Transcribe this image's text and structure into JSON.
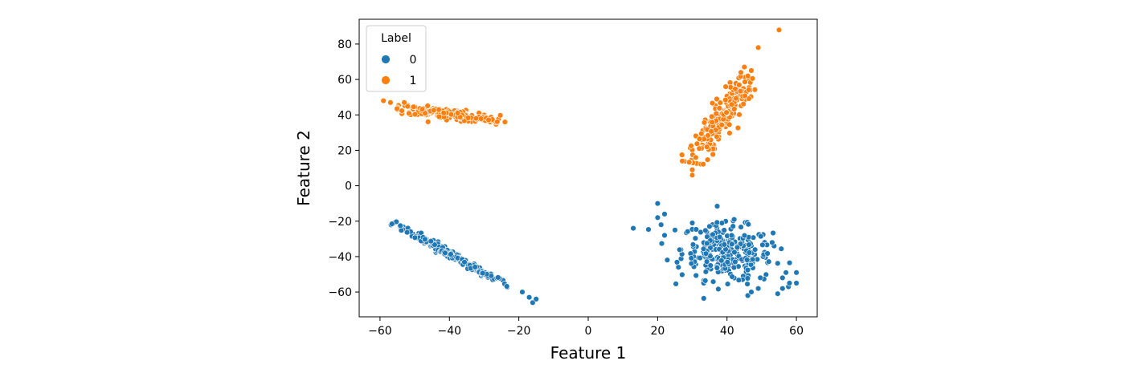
{
  "chart_data": {
    "type": "scatter",
    "title": "",
    "xlabel": "Feature 1",
    "ylabel": "Feature 2",
    "xlim": [
      -66,
      66
    ],
    "ylim": [
      -74,
      94
    ],
    "xticks": [
      -60,
      -40,
      -20,
      0,
      20,
      40,
      60
    ],
    "yticks": [
      -60,
      -40,
      -20,
      0,
      20,
      40,
      60,
      80
    ],
    "grid": false,
    "legend": {
      "title": "Label",
      "placement": "top-left"
    },
    "series": [
      {
        "name": "0",
        "color": "#1f77b4",
        "clusters": [
          {
            "shape": "line",
            "from": [
              -56,
              -21
            ],
            "to": [
              -23,
              -57
            ],
            "n": 170,
            "spread": 0.9
          },
          {
            "shape": "blob",
            "center": [
              40,
              -38
            ],
            "sd": [
              6.5,
              8
            ],
            "rho": -0.15,
            "n": 290
          }
        ],
        "points": [
          [
            -19,
            -60
          ],
          [
            -17,
            -63
          ],
          [
            -16,
            -66
          ],
          [
            -15,
            -64
          ],
          [
            13,
            -24
          ],
          [
            20,
            -10
          ],
          [
            20,
            -18
          ],
          [
            21,
            -22
          ],
          [
            22,
            -16
          ],
          [
            22,
            -28
          ],
          [
            25,
            -25
          ],
          [
            26,
            -46
          ],
          [
            30,
            -21
          ],
          [
            53,
            -32
          ],
          [
            56,
            -52
          ],
          [
            56,
            -58
          ],
          [
            57,
            -49
          ],
          [
            58,
            -55
          ],
          [
            60,
            -49
          ],
          [
            60,
            -55
          ],
          [
            46,
            -62
          ],
          [
            47,
            -60
          ],
          [
            49,
            -58
          ]
        ]
      },
      {
        "name": "1",
        "color": "#ff7f0e",
        "clusters": [
          {
            "shape": "line",
            "from": [
              -55,
              44
            ],
            "to": [
              -26,
              37
            ],
            "n": 190,
            "spread": 1.4
          },
          {
            "shape": "line",
            "from": [
              30,
              13
            ],
            "to": [
              46,
              61
            ],
            "n": 210,
            "spread": 2.2
          }
        ],
        "points": [
          [
            -59,
            48
          ],
          [
            -57,
            47
          ],
          [
            -53,
            47
          ],
          [
            -24,
            36
          ],
          [
            30,
            9
          ],
          [
            30,
            6
          ],
          [
            31,
            16
          ],
          [
            32,
            21
          ],
          [
            44,
            64
          ],
          [
            45,
            67
          ],
          [
            47,
            65
          ],
          [
            46,
            62
          ],
          [
            49,
            78
          ],
          [
            55,
            88
          ]
        ]
      }
    ]
  }
}
